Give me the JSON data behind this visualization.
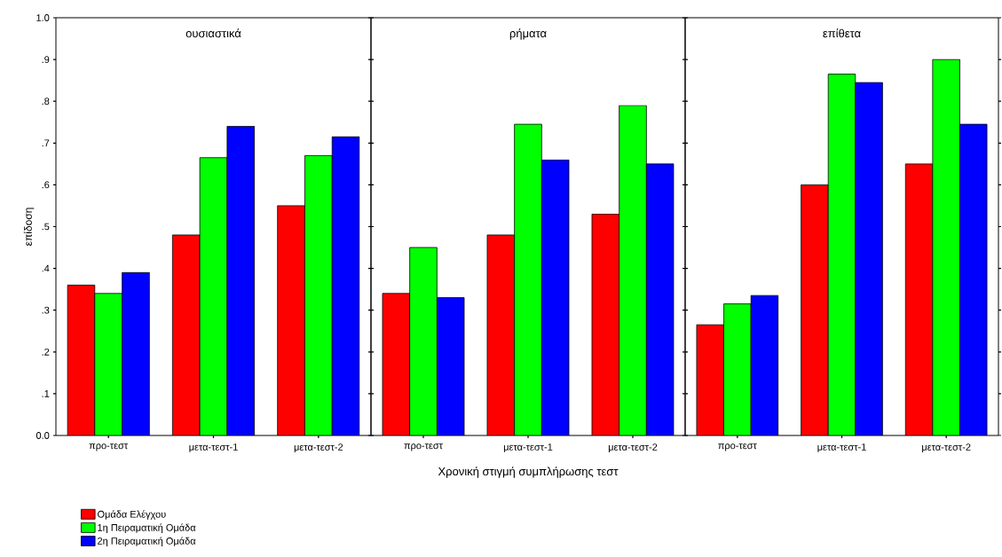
{
  "chart_data": [
    {
      "type": "bar",
      "title": "ουσιαστικά",
      "ylabel": "επίδοση",
      "categories": [
        "προ-τεστ",
        "μετα-τεστ-1",
        "μετα-τεστ-2"
      ],
      "series": [
        {
          "name": "Ομάδα Ελέγχου",
          "color": "#ff0000",
          "values": [
            0.36,
            0.48,
            0.55
          ]
        },
        {
          "name": "1η Πειραματική Ομάδα",
          "color": "#00ff00",
          "values": [
            0.34,
            0.665,
            0.67
          ]
        },
        {
          "name": "2η Πειραματική Ομάδα",
          "color": "#0000ff",
          "values": [
            0.39,
            0.74,
            0.715
          ]
        }
      ],
      "ylim": [
        0,
        1
      ],
      "yticks": [
        {
          "value": 0,
          "label": "0.0"
        },
        {
          "value": 0.1,
          "label": ".1"
        },
        {
          "value": 0.2,
          "label": ".2"
        },
        {
          "value": 0.3,
          "label": ".3"
        },
        {
          "value": 0.4,
          "label": ".4"
        },
        {
          "value": 0.5,
          "label": ".5"
        },
        {
          "value": 0.6,
          "label": ".6"
        },
        {
          "value": 0.7,
          "label": ".7"
        },
        {
          "value": 0.8,
          "label": ".8"
        },
        {
          "value": 0.9,
          "label": ".9"
        },
        {
          "value": 1,
          "label": "1.0"
        }
      ],
      "legend": "bottom left",
      "grid": false
    },
    {
      "type": "bar",
      "title": "ρήματα",
      "xlabel": "Χρονική στιγμή συμπλήρωσης τεστ",
      "categories": [
        "προ-τεστ",
        "μετα-τεστ-1",
        "μετα-τεστ-2"
      ],
      "series": [
        {
          "color": "#ff0000",
          "values": [
            0.34,
            0.48,
            0.53
          ]
        },
        {
          "color": "#00ff00",
          "values": [
            0.45,
            0.745,
            0.79
          ]
        },
        {
          "color": "#0000ff",
          "values": [
            0.33,
            0.66,
            0.65
          ]
        }
      ],
      "ylim": [
        0,
        1
      ],
      "yticks": [
        0,
        0.1,
        0.2,
        0.3,
        0.4,
        0.5,
        0.6,
        0.7,
        0.8,
        0.9,
        1
      ],
      "tick_labels": "x",
      "grid": false
    },
    {
      "type": "bar",
      "title": "επίθετα",
      "categories": [
        "προ-τεστ",
        "μετα-τεστ-1",
        "μετα-τεστ-2"
      ],
      "series": [
        {
          "color": "#ff0000",
          "values": [
            0.265,
            0.6,
            0.65
          ]
        },
        {
          "color": "#00ff00",
          "values": [
            0.315,
            0.865,
            0.9
          ]
        },
        {
          "color": "#0000ff",
          "values": [
            0.335,
            0.845,
            0.745
          ]
        }
      ],
      "ylim": [
        0,
        1
      ],
      "yticks": [
        0,
        0.1,
        0.2,
        0.3,
        0.4,
        0.5,
        0.6,
        0.7,
        0.8,
        0.9,
        1
      ],
      "tick_labels": "x",
      "grid": false
    }
  ]
}
